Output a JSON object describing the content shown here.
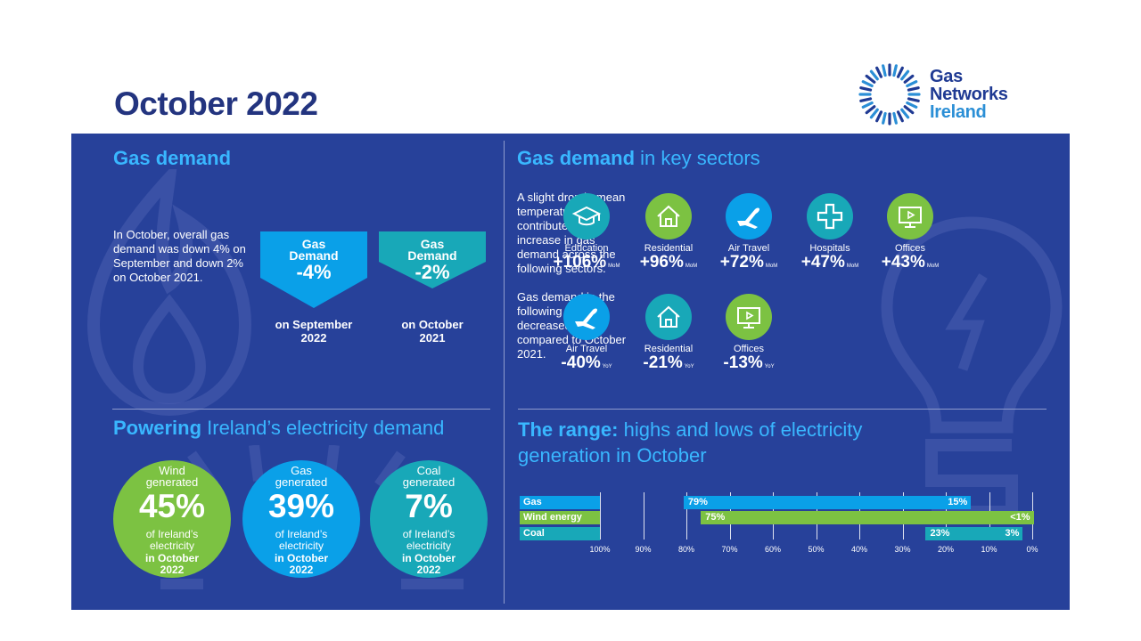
{
  "title": "October 2022",
  "logo": {
    "line1": "Gas",
    "line2": "Networks",
    "line3": "Ireland"
  },
  "colors": {
    "navy": "#27419a",
    "cyan": "#39b7ff",
    "green": "#7cc242",
    "teal": "#18a8b8",
    "blue": "#0aa0e8"
  },
  "gas_demand": {
    "heading": "Gas demand",
    "text": "In October, overall gas demand was down 4% on September and down 2% on October 2021.",
    "arrows": [
      {
        "line1": "Gas",
        "line2": "Demand",
        "pct": "-4%",
        "caption1": "on September",
        "caption2": "2022",
        "color": "#0aa0e8"
      },
      {
        "line1": "Gas",
        "line2": "Demand",
        "pct": "-2%",
        "caption1": "on October",
        "caption2": "2021",
        "color": "#18a8b8"
      }
    ]
  },
  "sectors": {
    "heading_bold": "Gas demand",
    "heading_light": " in key sectors",
    "text_increase": "A slight drop in mean temperature contributed to an increase in gas demand across the following sectors.",
    "text_decrease": "Gas demand in the following sectors decreased when compared to October 2021.",
    "increase": [
      {
        "label": "Education",
        "value": "+106%",
        "unit": "MoM",
        "color": "#18a8b8",
        "icon": "graduation-cap-icon"
      },
      {
        "label": "Residential",
        "value": "+96%",
        "unit": "MoM",
        "color": "#7cc242",
        "icon": "house-icon"
      },
      {
        "label": "Air Travel",
        "value": "+72%",
        "unit": "MoM",
        "color": "#0aa0e8",
        "icon": "airplane-icon"
      },
      {
        "label": "Hospitals",
        "value": "+47%",
        "unit": "MoM",
        "color": "#18a8b8",
        "icon": "medical-cross-icon"
      },
      {
        "label": "Offices",
        "value": "+43%",
        "unit": "MoM",
        "color": "#7cc242",
        "icon": "monitor-icon"
      }
    ],
    "decrease": [
      {
        "label": "Air Travel",
        "value": "-40%",
        "unit": "YoY",
        "color": "#0aa0e8",
        "icon": "airplane-icon"
      },
      {
        "label": "Residential",
        "value": "-21%",
        "unit": "YoY",
        "color": "#18a8b8",
        "icon": "house-icon"
      },
      {
        "label": "Offices",
        "value": "-13%",
        "unit": "YoY",
        "color": "#7cc242",
        "icon": "monitor-icon"
      }
    ]
  },
  "powering": {
    "heading_bold": "Powering",
    "heading_light": " Ireland’s electricity demand",
    "bubbles": [
      {
        "top1": "Wind",
        "top2": "generated",
        "pct": "45%",
        "sub1": "of Ireland’s",
        "sub2": "electricity",
        "bot1": "in October",
        "bot2": "2022",
        "color": "#7cc242"
      },
      {
        "top1": "Gas",
        "top2": "generated",
        "pct": "39%",
        "sub1": "of Ireland’s",
        "sub2": "electricity",
        "bot1": "in October",
        "bot2": "2022",
        "color": "#0aa0e8"
      },
      {
        "top1": "Coal",
        "top2": "generated",
        "pct": "7%",
        "sub1": "of Ireland’s",
        "sub2": "electricity",
        "bot1": "in October",
        "bot2": "2022",
        "color": "#18a8b8"
      }
    ]
  },
  "range": {
    "heading_bold": "The range:",
    "heading_light1": " highs and lows of electricity",
    "heading_light2": "generation in October"
  },
  "chart_data": {
    "type": "bar",
    "categories": [
      "Gas",
      "Wind energy",
      "Coal"
    ],
    "series": [
      {
        "name": "high",
        "values": [
          79,
          75,
          23
        ]
      },
      {
        "name": "low",
        "values": [
          15,
          0.5,
          3
        ]
      }
    ],
    "high_labels": [
      "79%",
      "75%",
      "23%"
    ],
    "low_labels": [
      "15%",
      "<1%",
      "3%"
    ],
    "colors": [
      "#0aa0e8",
      "#7cc242",
      "#18a8b8"
    ],
    "xlim": [
      100,
      0
    ],
    "ticks": [
      "100%",
      "90%",
      "80%",
      "70%",
      "60%",
      "50%",
      "40%",
      "30%",
      "20%",
      "10%",
      "0%"
    ]
  }
}
